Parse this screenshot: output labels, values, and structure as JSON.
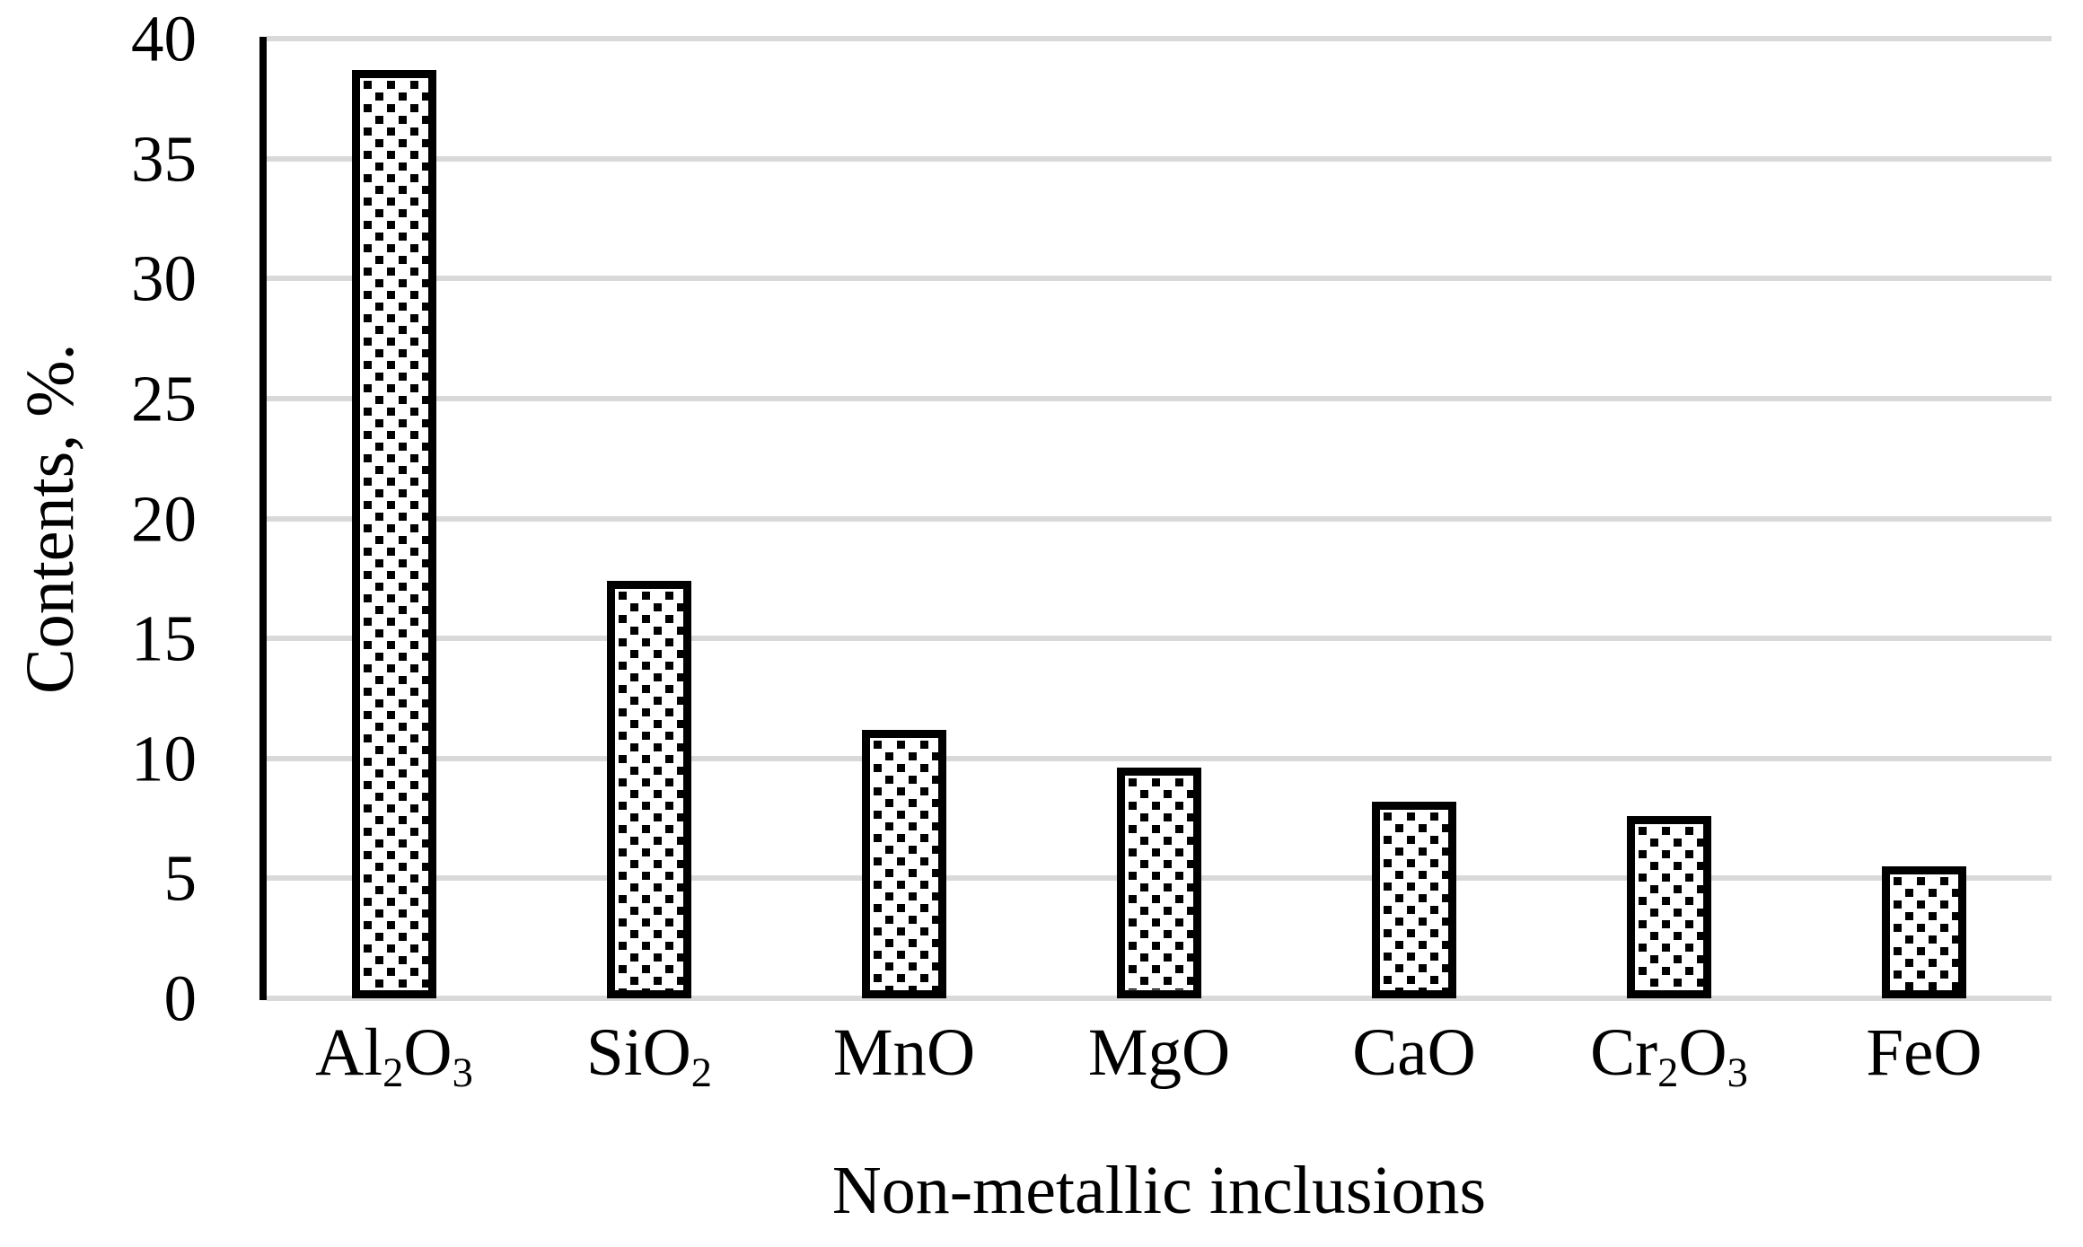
{
  "chart_data": {
    "type": "bar",
    "title": "",
    "xlabel": "Non-metallic inclusions",
    "ylabel": "Contents, %.",
    "categories": [
      "Al₂O₃",
      "SiO₂",
      "MnO",
      "MgO",
      "CaO",
      "Cr₂O₃",
      "FeO"
    ],
    "categories_segments": [
      [
        {
          "t": "Al"
        },
        {
          "t": "2",
          "sub": true
        },
        {
          "t": "O"
        },
        {
          "t": "3",
          "sub": true
        }
      ],
      [
        {
          "t": "SiO"
        },
        {
          "t": "2",
          "sub": true
        }
      ],
      [
        {
          "t": "MnO"
        }
      ],
      [
        {
          "t": "MgO"
        }
      ],
      [
        {
          "t": "CaO"
        }
      ],
      [
        {
          "t": "Cr"
        },
        {
          "t": "2",
          "sub": true
        },
        {
          "t": "O"
        },
        {
          "t": "3",
          "sub": true
        }
      ],
      [
        {
          "t": "FeO"
        }
      ]
    ],
    "values": [
      38.7,
      17.4,
      11.2,
      9.6,
      8.2,
      7.6,
      5.5
    ],
    "ylim": [
      0,
      40
    ],
    "yticks": [
      0,
      5,
      10,
      15,
      20,
      25,
      30,
      35,
      40
    ],
    "grid": true,
    "legend_position": "none",
    "bar_fill_pattern": "black-square-dot-lattice-on-white",
    "colors": {
      "bar_border": "#000000",
      "bar_fill_dot": "#000000",
      "bar_background": "#ffffff",
      "gridline": "#d9d9d9",
      "axis_line": "#000000",
      "text": "#000000",
      "background": "#ffffff"
    }
  }
}
